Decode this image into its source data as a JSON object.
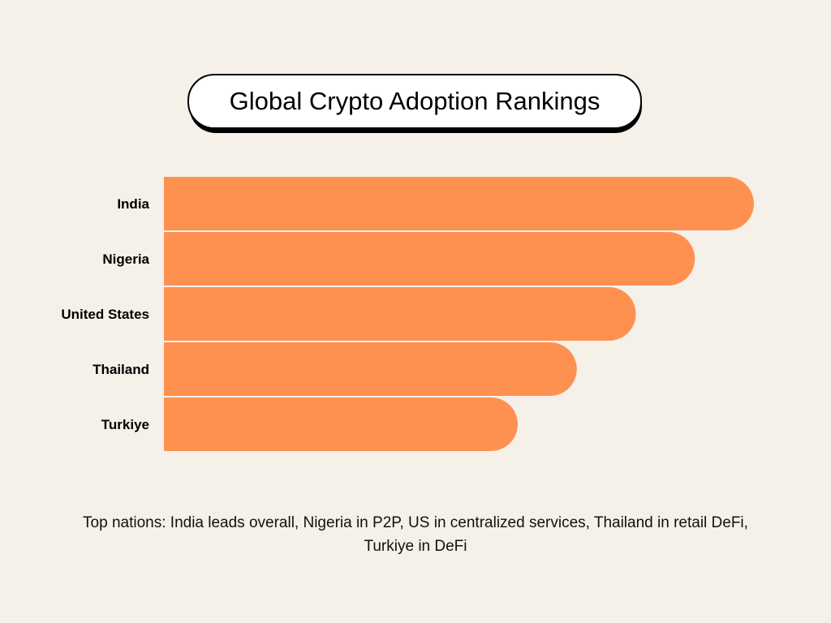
{
  "chart_data": {
    "type": "bar",
    "orientation": "horizontal",
    "title": "Global Crypto Adoption Rankings",
    "categories": [
      "India",
      "Nigeria",
      "United States",
      "Thailand",
      "Turkiye"
    ],
    "values": [
      5,
      4,
      3,
      2,
      1
    ],
    "bar_color": "#ff9150",
    "caption": "Top nations: India leads overall, Nigeria in P2P, US in centralized services, Thailand in retail DeFi, Turkiye in DeFi"
  },
  "colors": {
    "background": "#f5f0e8",
    "bar": "#ff9150",
    "title_bg": "#ffffff",
    "title_border": "#000000"
  }
}
